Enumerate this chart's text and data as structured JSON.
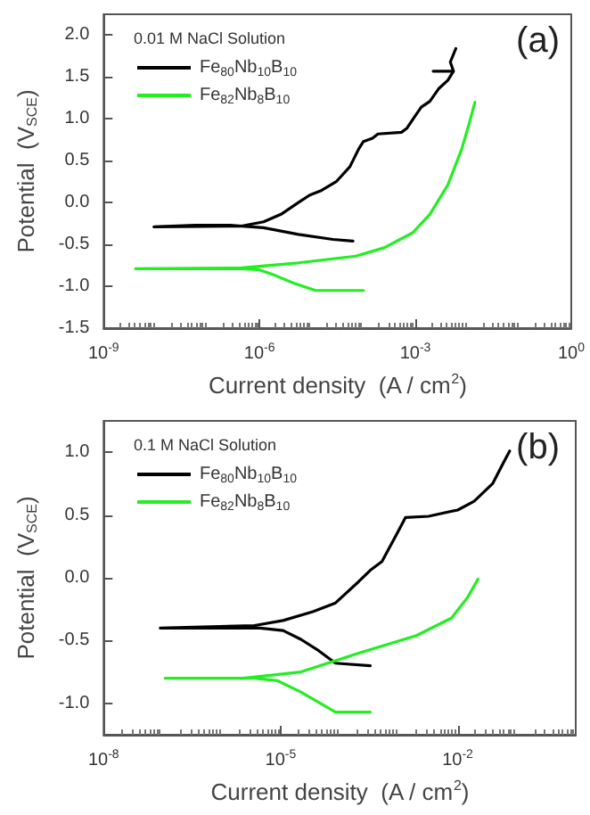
{
  "chart_data": [
    {
      "type": "line",
      "xlabel": "Current density  (A / cm$^{2}$)",
      "ylabel": "Potential  (V$_{SCE}$)",
      "legend_title": "0.01 M NaCl Solution",
      "annotations": [
        "(a)"
      ],
      "log": "x",
      "legend": "top left",
      "grid": false,
      "marker": "none",
      "line_style": "solid",
      "xlim": [
        1e-09,
        1
      ],
      "xticks": [
        {
          "value": 1e-09,
          "label": "10$^{-9}$"
        },
        {
          "value": 1e-06,
          "label": "10$^{-6}$"
        },
        {
          "value": 0.001,
          "label": "10$^{-3}$"
        },
        {
          "value": 1,
          "label": "10$^{0}$"
        }
      ],
      "ylim": [
        -1.5,
        2.25
      ],
      "yticks": [
        -1.5,
        {
          "value": -1,
          "label": "-1.0"
        },
        -0.5,
        {
          "value": 0,
          "label": "0.0"
        },
        0.5,
        {
          "value": 1,
          "label": "1.0"
        },
        1.5,
        {
          "value": 2,
          "label": "2.0"
        }
      ],
      "series": [
        {
          "name": "Fe$_{80}$Nb$_{10}$B$_{10}$",
          "color": "#000000",
          "x": [
            6.3e-05,
            2.6e-05,
            5.6e-06,
            1.2e-06,
            2.7e-07,
            5.8e-08,
            9.3e-09,
            4.5e-07,
            1.2e-06,
            2.6e-06,
            5.6e-06,
            9.3e-06,
            1.5e-05,
            3e-05,
            5.5e-05,
            8.1e-05,
            0.0001,
            0.00015,
            0.00019,
            0.00054,
            0.00069,
            0.001,
            0.0013,
            0.0019,
            0.0028,
            0.0042,
            0.0054,
            0.0022,
            0.0054,
            0.0047,
            0.006
          ],
          "values": [
            -0.46,
            -0.44,
            -0.38,
            -0.3,
            -0.27,
            -0.27,
            -0.29,
            -0.28,
            -0.23,
            -0.14,
            0.0,
            0.09,
            0.14,
            0.25,
            0.43,
            0.64,
            0.73,
            0.77,
            0.82,
            0.84,
            0.89,
            1.04,
            1.14,
            1.21,
            1.36,
            1.46,
            1.57,
            1.57,
            1.57,
            1.68,
            1.84
          ]
        },
        {
          "name": "Fe$_{82}$Nb$_{8}$B$_{10}$",
          "color": "#22ee22",
          "x": [
            0.0001,
            1.2e-05,
            4.4e-06,
            2e-06,
            9.5e-07,
            4.5e-07,
            4.1e-09,
            4.5e-07,
            5.6e-06,
            7.1e-05,
            0.00025,
            0.00089,
            0.0019,
            0.0042,
            0.0078,
            0.011,
            0.014
          ],
          "values": [
            -1.05,
            -1.05,
            -0.96,
            -0.87,
            -0.8,
            -0.79,
            -0.79,
            -0.78,
            -0.72,
            -0.64,
            -0.54,
            -0.36,
            -0.14,
            0.21,
            0.64,
            0.96,
            1.2
          ]
        }
      ]
    },
    {
      "type": "line",
      "xlabel": "Current density  (A / cm$^{2}$)",
      "ylabel": "Potential  (V$_{SCE}$)",
      "legend_title": "0.1 M NaCl Solution",
      "annotations": [
        "(b)"
      ],
      "log": "x",
      "legend": "top left",
      "grid": false,
      "marker": "none",
      "line_style": "solid",
      "xlim": [
        1e-08,
        1
      ],
      "xticks": [
        {
          "value": 1e-08,
          "label": "10$^{-8}$"
        },
        {
          "value": 1e-05,
          "label": "10$^{-5}$"
        },
        {
          "value": 0.01,
          "label": "10$^{-2}$"
        }
      ],
      "ylim": [
        -1.25,
        1.25
      ],
      "yticks": [
        {
          "value": -1,
          "label": "-1.0"
        },
        -0.5,
        {
          "value": 0,
          "label": "0.0"
        },
        0.5,
        {
          "value": 1,
          "label": "1.0"
        }
      ],
      "series": [
        {
          "name": "Fe$_{80}$Nb$_{10}$B$_{10}$",
          "color": "#000000",
          "x": [
            0.00033,
            8.5e-05,
            4.4e-05,
            2.2e-05,
            1.1e-05,
            4.5e-06,
            7.4e-07,
            9.1e-08,
            3.6e-06,
            1.1e-05,
            3.5e-05,
            8.5e-05,
            0.00021,
            0.00033,
            0.00052,
            0.00093,
            0.0013,
            0.0032,
            0.01,
            0.019,
            0.039,
            0.06,
            0.076
          ],
          "values": [
            -0.7,
            -0.68,
            -0.58,
            -0.49,
            -0.42,
            -0.4,
            -0.4,
            -0.4,
            -0.38,
            -0.34,
            -0.27,
            -0.2,
            -0.03,
            0.06,
            0.13,
            0.35,
            0.48,
            0.49,
            0.54,
            0.61,
            0.75,
            0.92,
            1.01
          ]
        },
        {
          "name": "Fe$_{82}$Nb$_{8}$B$_{10}$",
          "color": "#22ee22",
          "x": [
            0.00033,
            8.5e-05,
            2.2e-05,
            8.9e-06,
            3.6e-06,
            1.1e-07,
            2.3e-06,
            2.2e-05,
            0.00021,
            0.002,
            0.0079,
            0.015,
            0.022
          ],
          "values": [
            -1.07,
            -1.07,
            -0.91,
            -0.82,
            -0.8,
            -0.8,
            -0.8,
            -0.75,
            -0.6,
            -0.46,
            -0.32,
            -0.15,
            -0.01
          ]
        }
      ]
    }
  ]
}
